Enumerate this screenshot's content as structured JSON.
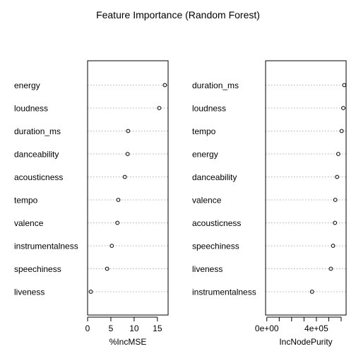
{
  "chart_data": [
    {
      "type": "scatter",
      "title": "Feature Importance (Random Forest)",
      "xlabel": "%IncMSE",
      "ylabel": "",
      "xlim": [
        0,
        17.3
      ],
      "xticks": [
        0,
        5,
        10,
        15
      ],
      "xtick_labels": [
        "0",
        "5",
        "10",
        "15"
      ],
      "grid": "dotted horizontal guide lines",
      "categories": [
        "energy",
        "loudness",
        "duration_ms",
        "danceability",
        "acousticness",
        "tempo",
        "valence",
        "instrumentalness",
        "speechiness",
        "liveness"
      ],
      "values": [
        16.6,
        15.4,
        8.7,
        8.6,
        8.0,
        6.6,
        6.4,
        5.2,
        4.2,
        0.7
      ]
    },
    {
      "type": "scatter",
      "xlabel": "IncNodePurity",
      "ylabel": "",
      "xlim": [
        -10000,
        640000
      ],
      "xticks": [
        0,
        400000
      ],
      "xtick_labels": [
        "0e+00",
        "4e+05"
      ],
      "minor_xticks": [
        100000,
        200000,
        300000,
        500000,
        600000
      ],
      "grid": "dotted horizontal guide lines",
      "categories": [
        "duration_ms",
        "loudness",
        "tempo",
        "energy",
        "danceability",
        "valence",
        "acousticness",
        "speechiness",
        "liveness",
        "instrumentalness"
      ],
      "values": [
        625000,
        617000,
        604000,
        577000,
        567000,
        553000,
        550000,
        535000,
        517000,
        365000
      ]
    }
  ]
}
